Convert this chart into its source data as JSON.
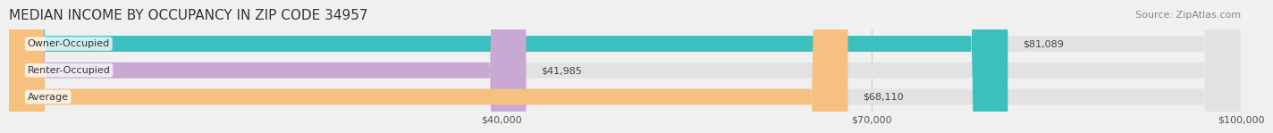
{
  "title": "MEDIAN INCOME BY OCCUPANCY IN ZIP CODE 34957",
  "source": "Source: ZipAtlas.com",
  "categories": [
    "Owner-Occupied",
    "Renter-Occupied",
    "Average"
  ],
  "values": [
    81089,
    41985,
    68110
  ],
  "bar_colors": [
    "#3bbfbf",
    "#c9a8d4",
    "#f5c080"
  ],
  "label_values": [
    "$81,089",
    "$41,985",
    "$68,110"
  ],
  "xlim": [
    0,
    100000
  ],
  "xticks": [
    40000,
    70000,
    100000
  ],
  "xtick_labels": [
    "$40,000",
    "$70,000",
    "$100,000"
  ],
  "background_color": "#f0f0f0",
  "bar_bg_color": "#e2e2e2",
  "title_fontsize": 11,
  "source_fontsize": 8,
  "label_fontsize": 8,
  "bar_height": 0.6
}
